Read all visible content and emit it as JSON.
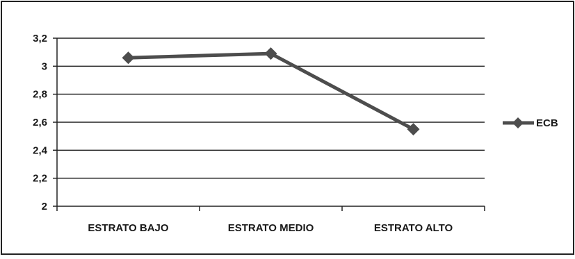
{
  "chart_data": {
    "type": "line",
    "title": "",
    "xlabel": "",
    "ylabel": "",
    "categories": [
      "ESTRATO BAJO",
      "ESTRATO MEDIO",
      "ESTRATO ALTO"
    ],
    "series": [
      {
        "name": "ECB",
        "values": [
          3.06,
          3.09,
          2.55
        ],
        "color": "#4d4d4d",
        "marker": "diamond"
      }
    ],
    "ylim": [
      2,
      3.2
    ],
    "yticks": [
      "2",
      "2,2",
      "2,4",
      "2,6",
      "2,8",
      "3",
      "3,2"
    ],
    "ytick_values": [
      2,
      2.2,
      2.4,
      2.6,
      2.8,
      3,
      3.2
    ],
    "grid": true,
    "legend": "right"
  }
}
